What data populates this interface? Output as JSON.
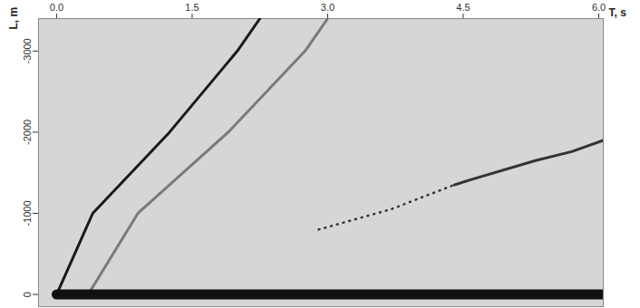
{
  "chart_data": {
    "type": "line",
    "x_label": "T, s",
    "y_label": "L, m",
    "xlim": [
      -0.2,
      6.05
    ],
    "ylim": [
      -3400,
      150
    ],
    "xticks": [
      {
        "value": 0,
        "label": "0.0"
      },
      1.5,
      {
        "value": 3,
        "label": "3.0"
      },
      4.5,
      {
        "value": 6,
        "label": "6.0"
      }
    ],
    "yticks": [
      -3000,
      -2000,
      -1000,
      0
    ],
    "series": [
      {
        "x": [
          0,
          0.4,
          1.25,
          2.0,
          2.25
        ],
        "values": [
          0,
          -1000,
          -2000,
          -3000,
          -3400
        ],
        "color": "#1a1a1a",
        "line_style": "solid"
      },
      {
        "x": [
          0.35,
          0.9,
          1.9,
          2.75,
          3.0
        ],
        "values": [
          0,
          -1000,
          -2000,
          -3000,
          -3400
        ],
        "color": "#7a7a7a",
        "line_style": "solid"
      },
      {
        "x": [
          2.9,
          3.7,
          4.4
        ],
        "values": [
          -800,
          -1050,
          -1350
        ],
        "color": "#333333",
        "line_style": "dotted"
      },
      {
        "x": [
          4.4,
          4.6,
          5.3,
          5.7,
          6.05
        ],
        "values": [
          -1350,
          -1420,
          -1650,
          -1760,
          -1900
        ],
        "color": "#333333",
        "line_style": "solid"
      },
      {
        "x": [
          0,
          6.05
        ],
        "values": [
          0,
          0
        ],
        "color": "#111111",
        "line_style": "heavy"
      }
    ]
  }
}
